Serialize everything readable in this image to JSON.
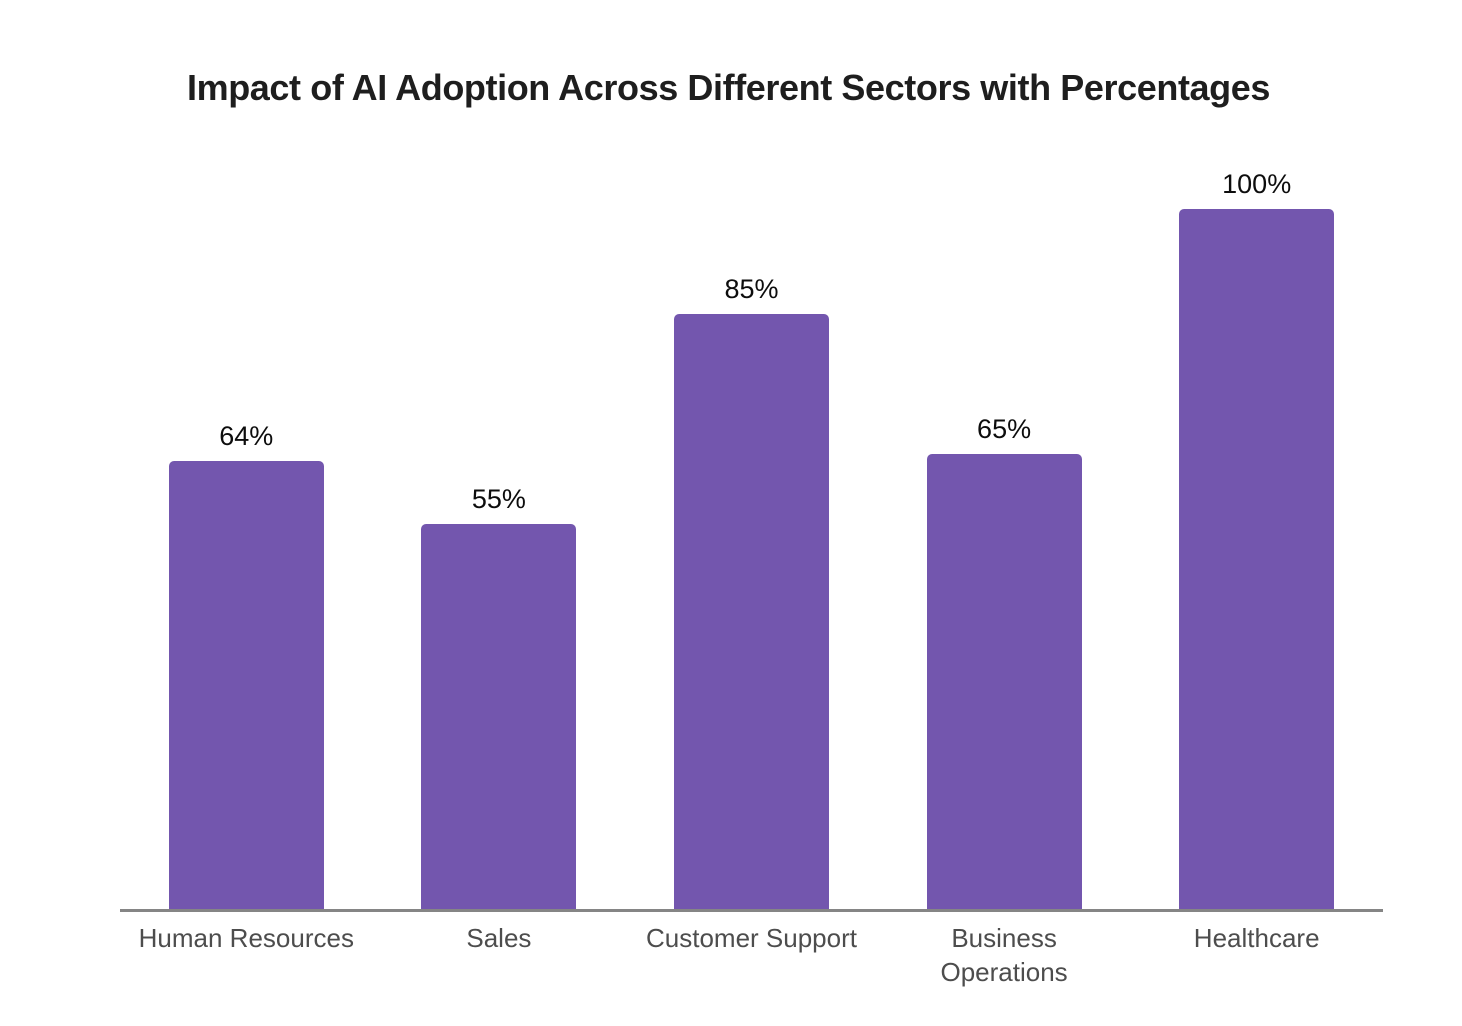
{
  "chart": {
    "title": "Impact of AI Adoption Across Different Sectors with Percentages"
  },
  "chart_data": {
    "type": "bar",
    "title": "Impact of AI Adoption Across Different Sectors with Percentages",
    "categories": [
      "Human Resources",
      "Sales",
      "Customer Support",
      "Business Operations",
      "Healthcare"
    ],
    "values": [
      64,
      55,
      85,
      65,
      100
    ],
    "value_labels": [
      "64%",
      "55%",
      "85%",
      "65%",
      "100%"
    ],
    "xlabel": "",
    "ylabel": "",
    "ylim": [
      0,
      108
    ],
    "grid": false,
    "legend": false,
    "orientation": "vertical",
    "colors": {
      "bar": "#7356AE",
      "axis_line": "#858585",
      "category_label": "#4d4d4d",
      "value_label": "#0d0d0d",
      "title": "#1e1e1e",
      "background": "#ffffff"
    }
  }
}
